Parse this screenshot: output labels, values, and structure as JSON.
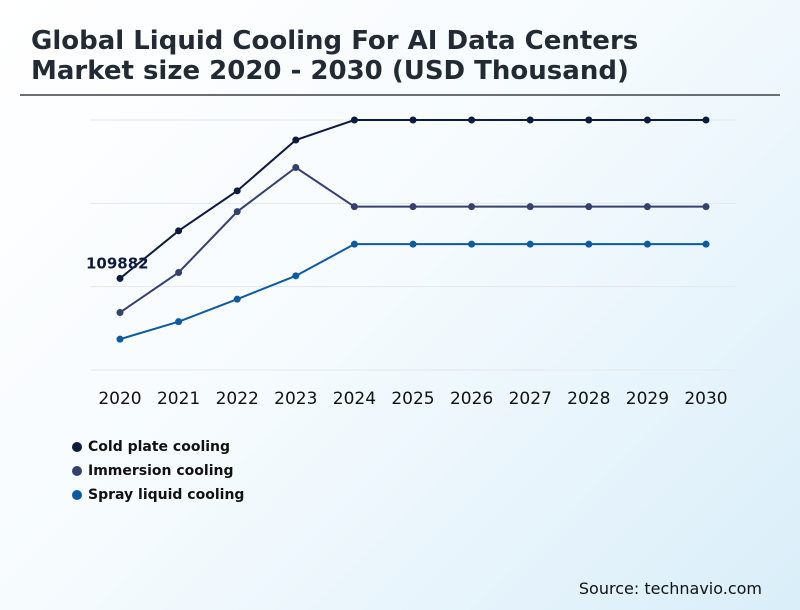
{
  "title": "Global Liquid Cooling For AI Data Centers Market size 2020 - 2030 (USD Thousand)",
  "source": "Source: technavio.com",
  "chart_data": {
    "type": "line",
    "title": "Global Liquid Cooling For AI Data Centers Market size 2020 - 2030 (USD Thousand)",
    "xlabel": "",
    "ylabel": "",
    "x": [
      "2020",
      "2021",
      "2022",
      "2023",
      "2024",
      "2025",
      "2026",
      "2027",
      "2028",
      "2029",
      "2030"
    ],
    "ylim": [
      0,
      300000
    ],
    "grid": true,
    "legend_position": "bottom-left",
    "annotations": [
      {
        "text": "109882",
        "series": "Cold plate cooling",
        "x": "2020"
      }
    ],
    "series": [
      {
        "name": "Cold plate cooling",
        "color": "#0d1b3e",
        "values": [
          109882,
          167000,
          215000,
          276000,
          300000,
          300000,
          300000,
          300000,
          300000,
          300000,
          300000
        ]
      },
      {
        "name": "Immersion cooling",
        "color": "#34406e",
        "values": [
          69000,
          117000,
          190000,
          243000,
          196000,
          196000,
          196000,
          196000,
          196000,
          196000,
          196000
        ]
      },
      {
        "name": "Spray liquid cooling",
        "color": "#0b5aa2",
        "values": [
          37000,
          58000,
          85000,
          113000,
          151000,
          151000,
          151000,
          151000,
          151000,
          151000,
          151000
        ]
      }
    ]
  }
}
